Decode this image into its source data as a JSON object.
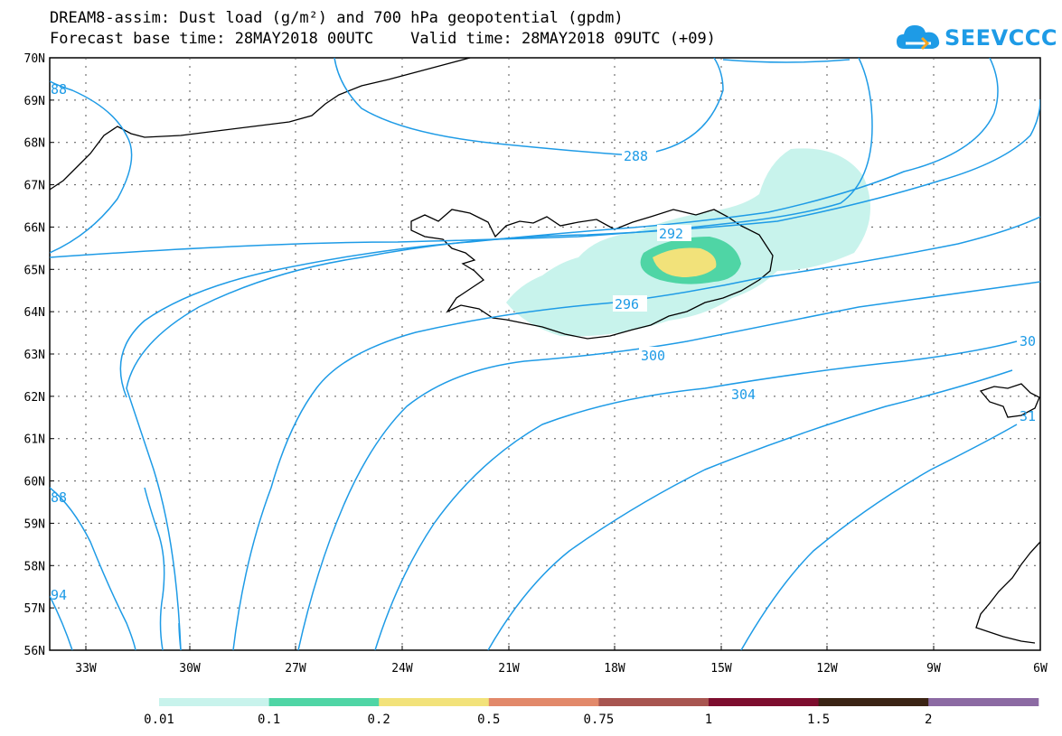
{
  "title": {
    "line1": "DREAM8-assim: Dust load (g/m²) and 700 hPa geopotential (gpdm)",
    "line2": "Forecast base time: 28MAY2018 00UTC    Valid time: 28MAY2018 09UTC (+09)"
  },
  "logo": {
    "text": "SEEVCCC",
    "icon": "cloud-icon"
  },
  "map": {
    "lat_labels": [
      "70N",
      "69N",
      "68N",
      "67N",
      "66N",
      "65N",
      "64N",
      "63N",
      "62N",
      "61N",
      "60N",
      "59N",
      "58N",
      "57N",
      "56N"
    ],
    "lon_labels": [
      "33W",
      "30W",
      "27W",
      "24W",
      "21W",
      "18W",
      "15W",
      "12W",
      "9W",
      "6W"
    ],
    "contour_labels": [
      "288",
      "292",
      "296",
      "300",
      "304",
      "88",
      "88",
      "94",
      "30",
      "31"
    ],
    "contour_color": "#1e9be6"
  },
  "legend": {
    "colors": [
      "#c8f3ec",
      "#4fd5a5",
      "#f2e27a",
      "#e2896a",
      "#a85550",
      "#7d0d2e",
      "#3b2414",
      "#8c6aa3"
    ],
    "labels": [
      "0.01",
      "0.1",
      "0.2",
      "0.5",
      "0.75",
      "1",
      "1.5",
      "2"
    ]
  }
}
